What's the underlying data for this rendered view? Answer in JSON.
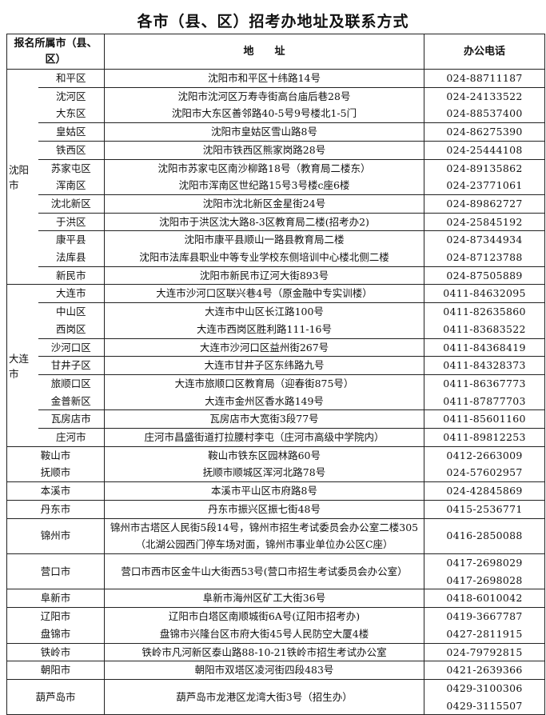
{
  "title": "各市（县、区）招考办地址及联系方式",
  "header": {
    "col_city": "报名所属市（县、区）",
    "col_address": "地　　址",
    "col_phone": "办公电话"
  },
  "sections": [
    {
      "city": "沈阳市",
      "blocks": [
        {
          "districts": [
            "和平区"
          ],
          "addresses": [
            "沈阳市和平区十纬路14号"
          ],
          "phones": [
            "024-88711187"
          ]
        },
        {
          "districts": [
            "沈河区",
            "大东区"
          ],
          "addresses": [
            "沈阳市沈河区万寿寺街高台庙后巷28号",
            "沈阳市大东区善邻路40-5号9号楼北1-5门"
          ],
          "phones": [
            "024-24133522",
            "024-88537400"
          ]
        },
        {
          "districts": [
            "皇姑区"
          ],
          "addresses": [
            "沈阳市皇姑区雪山路8号"
          ],
          "phones": [
            "024-86275390"
          ]
        },
        {
          "districts": [
            "铁西区"
          ],
          "addresses": [
            "沈阳市铁西区熊家岗路28号"
          ],
          "phones": [
            "024-25444108"
          ]
        },
        {
          "districts": [
            "苏家屯区",
            "浑南区"
          ],
          "addresses": [
            "沈阳市苏家屯区南沙柳路18号（教育局二楼东）",
            "沈阳市浑南区世纪路15号3号楼c座6楼"
          ],
          "phones": [
            "024-89135862",
            "024-23771061"
          ]
        },
        {
          "districts": [
            "沈北新区"
          ],
          "addresses": [
            "沈阳市沈北新区金星街24号"
          ],
          "phones": [
            "024-89862727"
          ]
        },
        {
          "districts": [
            "于洪区"
          ],
          "addresses": [
            "沈阳市于洪区沈大路8-3区教育局二楼(招考办2)"
          ],
          "phones": [
            "024-25845192"
          ]
        },
        {
          "districts": [
            "康平县",
            "法库县"
          ],
          "addresses": [
            "沈阳市康平县顺山一路县教育局二楼",
            "沈阳市法库县职业中等专业学校东侧培训中心楼北侧二楼"
          ],
          "phones": [
            "024-87344934",
            "024-87123788"
          ]
        },
        {
          "districts": [
            "新民市"
          ],
          "addresses": [
            "沈阳市新民市辽河大街893号"
          ],
          "phones": [
            "024-87505889"
          ]
        }
      ]
    },
    {
      "city": "大连市",
      "blocks": [
        {
          "districts": [
            "大连市"
          ],
          "addresses": [
            "大连市沙河口区联兴巷4号（原金融中专实训楼）"
          ],
          "phones": [
            "0411-84632095"
          ]
        },
        {
          "districts": [
            "中山区",
            "西岗区"
          ],
          "addresses": [
            "大连市中山区长江路100号",
            "大连市西岗区胜利路111-16号"
          ],
          "phones": [
            "0411-82635860",
            "0411-83683522"
          ]
        },
        {
          "districts": [
            "沙河口区"
          ],
          "addresses": [
            "大连市沙河口区益州街267号"
          ],
          "phones": [
            "0411-84368419"
          ]
        },
        {
          "districts": [
            "甘井子区"
          ],
          "addresses": [
            "大连市甘井子区东纬路九号"
          ],
          "phones": [
            "0411-84328373"
          ]
        },
        {
          "districts": [
            "旅顺口区",
            "金普新区"
          ],
          "addresses": [
            "大连市旅顺口区教育局（迎春街875号）",
            "大连市金州区香水路149号"
          ],
          "phones": [
            "0411-86367773",
            "0411-87877703"
          ]
        },
        {
          "districts": [
            "瓦房店市"
          ],
          "addresses": [
            "瓦房店市大宽街3段77号"
          ],
          "phones": [
            "0411-85601160"
          ]
        },
        {
          "districts": [
            "庄河市"
          ],
          "addresses": [
            "庄河市昌盛街道打拉腰村李屯（庄河市高级中学院内）"
          ],
          "phones": [
            "0411-89812253"
          ]
        }
      ]
    },
    {
      "blocks": [
        {
          "districts": [
            "鞍山市",
            "抚顺市"
          ],
          "addresses": [
            "鞍山市铁东区园林路60号",
            "抚顺市顺城区浑河北路78号"
          ],
          "phones": [
            "0412-2663009",
            "024-57602957"
          ]
        },
        {
          "districts": [
            "本溪市"
          ],
          "addresses": [
            "本溪市平山区市府路8号"
          ],
          "phones": [
            "024-42845869"
          ]
        },
        {
          "districts": [
            "丹东市"
          ],
          "addresses": [
            "丹东市振兴区振七街48号"
          ],
          "phones": [
            "0415-2536771"
          ]
        },
        {
          "districts": [
            "锦州市"
          ],
          "addresses": [
            "锦州市古塔区人民街5段14号，锦州市招生考试委员会办公室二楼305",
            "（北湖公园西门停车场对面，锦州市事业单位办公区C座）"
          ],
          "phones": [
            "0416-2850088"
          ]
        },
        {
          "districts": [
            "营口市"
          ],
          "addresses": [
            "营口市西市区金牛山大街西53号(营口市招生考试委员会办公室）"
          ],
          "phones": [
            "0417-2698029",
            "0417-2698028"
          ]
        },
        {
          "districts": [
            "阜新市"
          ],
          "addresses": [
            "阜新市海州区矿工大街36号"
          ],
          "phones": [
            "0418-6010042"
          ]
        },
        {
          "districts": [
            "辽阳市",
            "盘锦市"
          ],
          "addresses": [
            "辽阳市白塔区南顺城街6A号(辽阳市招考办)",
            "盘锦市兴隆台区市府大街45号人民防空大厦4楼"
          ],
          "phones": [
            "0419-3667787",
            "0427-2811915"
          ]
        },
        {
          "districts": [
            "铁岭市"
          ],
          "addresses": [
            "铁岭市凡河新区泰山路88-10-21铁岭市招生考试办公室"
          ],
          "phones": [
            "024-79792815"
          ]
        },
        {
          "districts": [
            "朝阳市"
          ],
          "addresses": [
            "朝阳市双塔区凌河街四段483号"
          ],
          "phones": [
            "0421-2639366"
          ]
        },
        {
          "districts": [
            "葫芦岛市"
          ],
          "addresses": [
            "葫芦岛市龙港区龙湾大街3号（招生办）"
          ],
          "phones": [
            "0429-3100306",
            "0429-3115507"
          ]
        }
      ]
    }
  ]
}
